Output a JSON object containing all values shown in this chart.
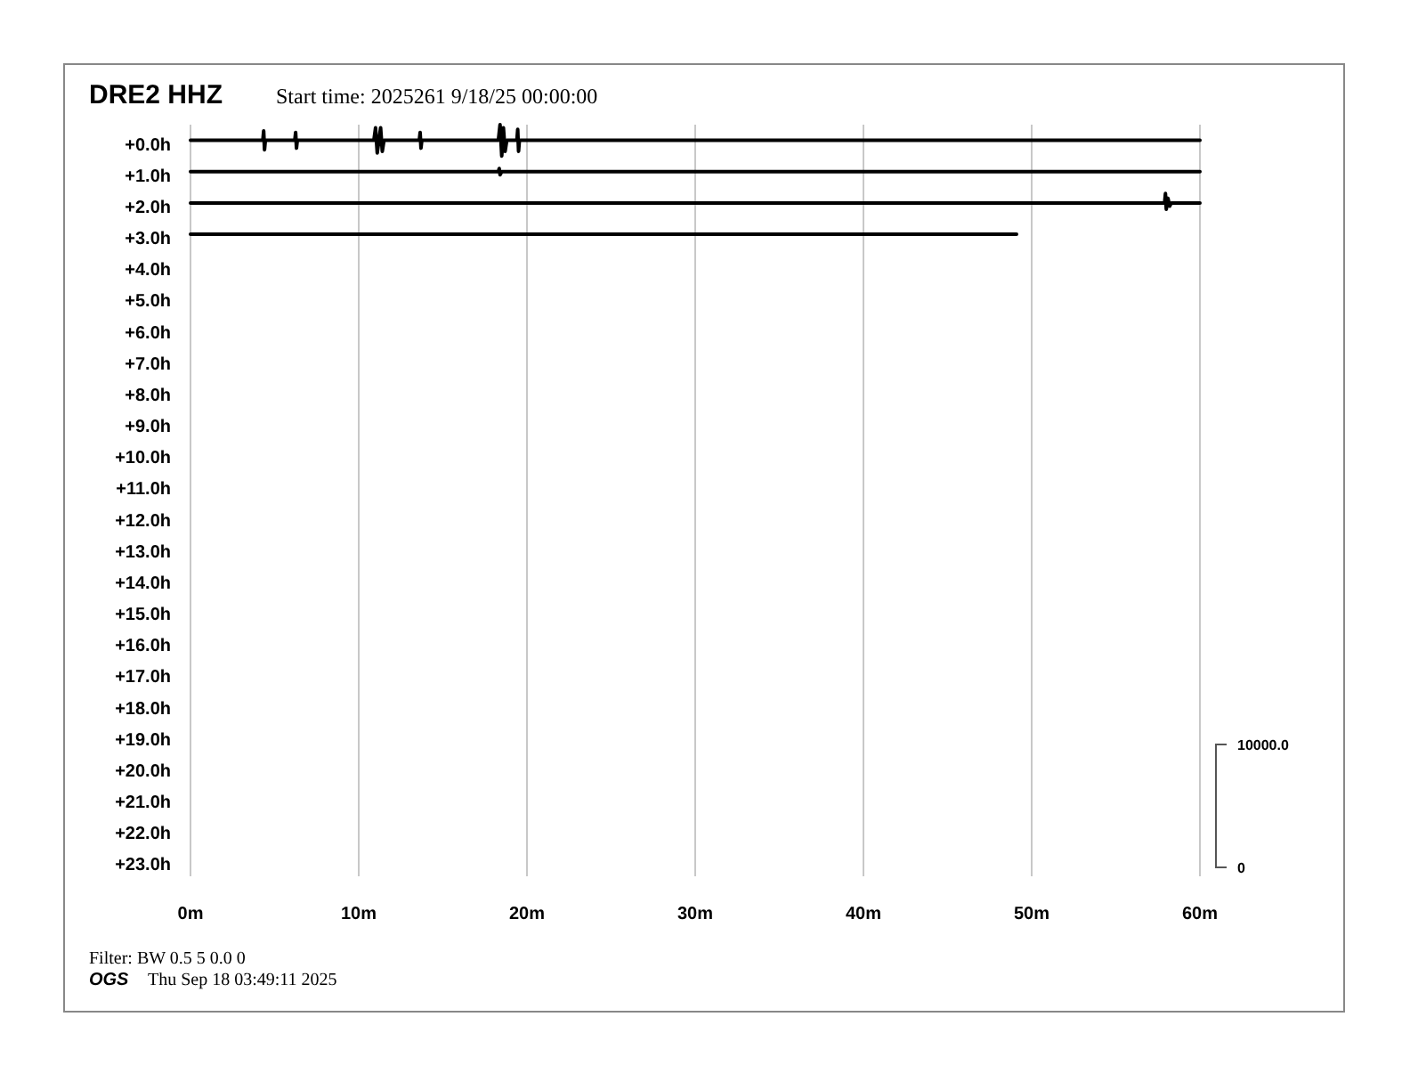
{
  "chart_data": {
    "type": "line",
    "title": "DRE2 HHZ",
    "subtitle": "Start time: 2025261  9/18/25 00:00:00",
    "xlim": [
      0,
      60
    ],
    "xticks": [
      {
        "value": 0,
        "label": "0m"
      },
      {
        "value": 10,
        "label": "10m"
      },
      {
        "value": 20,
        "label": "20m"
      },
      {
        "value": 30,
        "label": "30m"
      },
      {
        "value": 40,
        "label": "40m"
      },
      {
        "value": 50,
        "label": "50m"
      },
      {
        "value": 60,
        "label": "60m"
      }
    ],
    "ylim": [
      23.5,
      -0.5
    ],
    "yticks": [
      {
        "value": 0,
        "label": "+0.0h"
      },
      {
        "value": 1,
        "label": "+1.0h"
      },
      {
        "value": 2,
        "label": "+2.0h"
      },
      {
        "value": 3,
        "label": "+3.0h"
      },
      {
        "value": 4,
        "label": "+4.0h"
      },
      {
        "value": 5,
        "label": "+5.0h"
      },
      {
        "value": 6,
        "label": "+6.0h"
      },
      {
        "value": 7,
        "label": "+7.0h"
      },
      {
        "value": 8,
        "label": "+8.0h"
      },
      {
        "value": 9,
        "label": "+9.0h"
      },
      {
        "value": 10,
        "label": "+10.0h"
      },
      {
        "value": 11,
        "label": "+11.0h"
      },
      {
        "value": 12,
        "label": "+12.0h"
      },
      {
        "value": 13,
        "label": "+13.0h"
      },
      {
        "value": 14,
        "label": "+14.0h"
      },
      {
        "value": 15,
        "label": "+15.0h"
      },
      {
        "value": 16,
        "label": "+16.0h"
      },
      {
        "value": 17,
        "label": "+17.0h"
      },
      {
        "value": 18,
        "label": "+18.0h"
      },
      {
        "value": 19,
        "label": "+19.0h"
      },
      {
        "value": 20,
        "label": "+20.0h"
      },
      {
        "value": 21,
        "label": "+21.0h"
      },
      {
        "value": 22,
        "label": "+22.0h"
      },
      {
        "value": 23,
        "label": "+23.0h"
      }
    ],
    "grid": "x",
    "series": [
      {
        "color": "#000000",
        "x": [
          0,
          4.3,
          4.35,
          4.4,
          4.45,
          6.2,
          6.25,
          6.3,
          6.35,
          10.9,
          11.0,
          11.1,
          11.3,
          11.4,
          11.5,
          13.6,
          13.65,
          13.7,
          13.75,
          18.3,
          18.4,
          18.5,
          18.6,
          18.7,
          18.8,
          19.4,
          19.45,
          19.5,
          19.55,
          60
        ],
        "values": [
          0,
          0,
          -0.3,
          0.3,
          0,
          0,
          -0.25,
          0.25,
          0,
          0,
          -0.4,
          0.4,
          -0.4,
          0.35,
          0,
          0,
          -0.25,
          0.25,
          0,
          0,
          -0.5,
          0.5,
          -0.4,
          0.35,
          0,
          0,
          -0.35,
          0.35,
          0,
          0
        ]
      },
      {
        "color": "#000000",
        "x": [
          0,
          18.3,
          18.35,
          18.4,
          18.5,
          60
        ],
        "values": [
          1,
          1,
          0.9,
          1.1,
          1,
          1
        ]
      },
      {
        "color": "#000000",
        "x": [
          0,
          57.9,
          57.95,
          58.0,
          58.1,
          58.2,
          58.3,
          60
        ],
        "values": [
          2,
          2,
          1.7,
          2.2,
          1.85,
          2.1,
          2,
          2
        ]
      },
      {
        "color": "#000000",
        "x": [
          0,
          49.1
        ],
        "values": [
          3,
          3
        ]
      }
    ],
    "annotations": [
      "Filter: BW 0.5 5 0.0 0",
      "OGS",
      "Thu Sep 18 03:49:11 2025",
      "10000.0",
      "0"
    ]
  }
}
